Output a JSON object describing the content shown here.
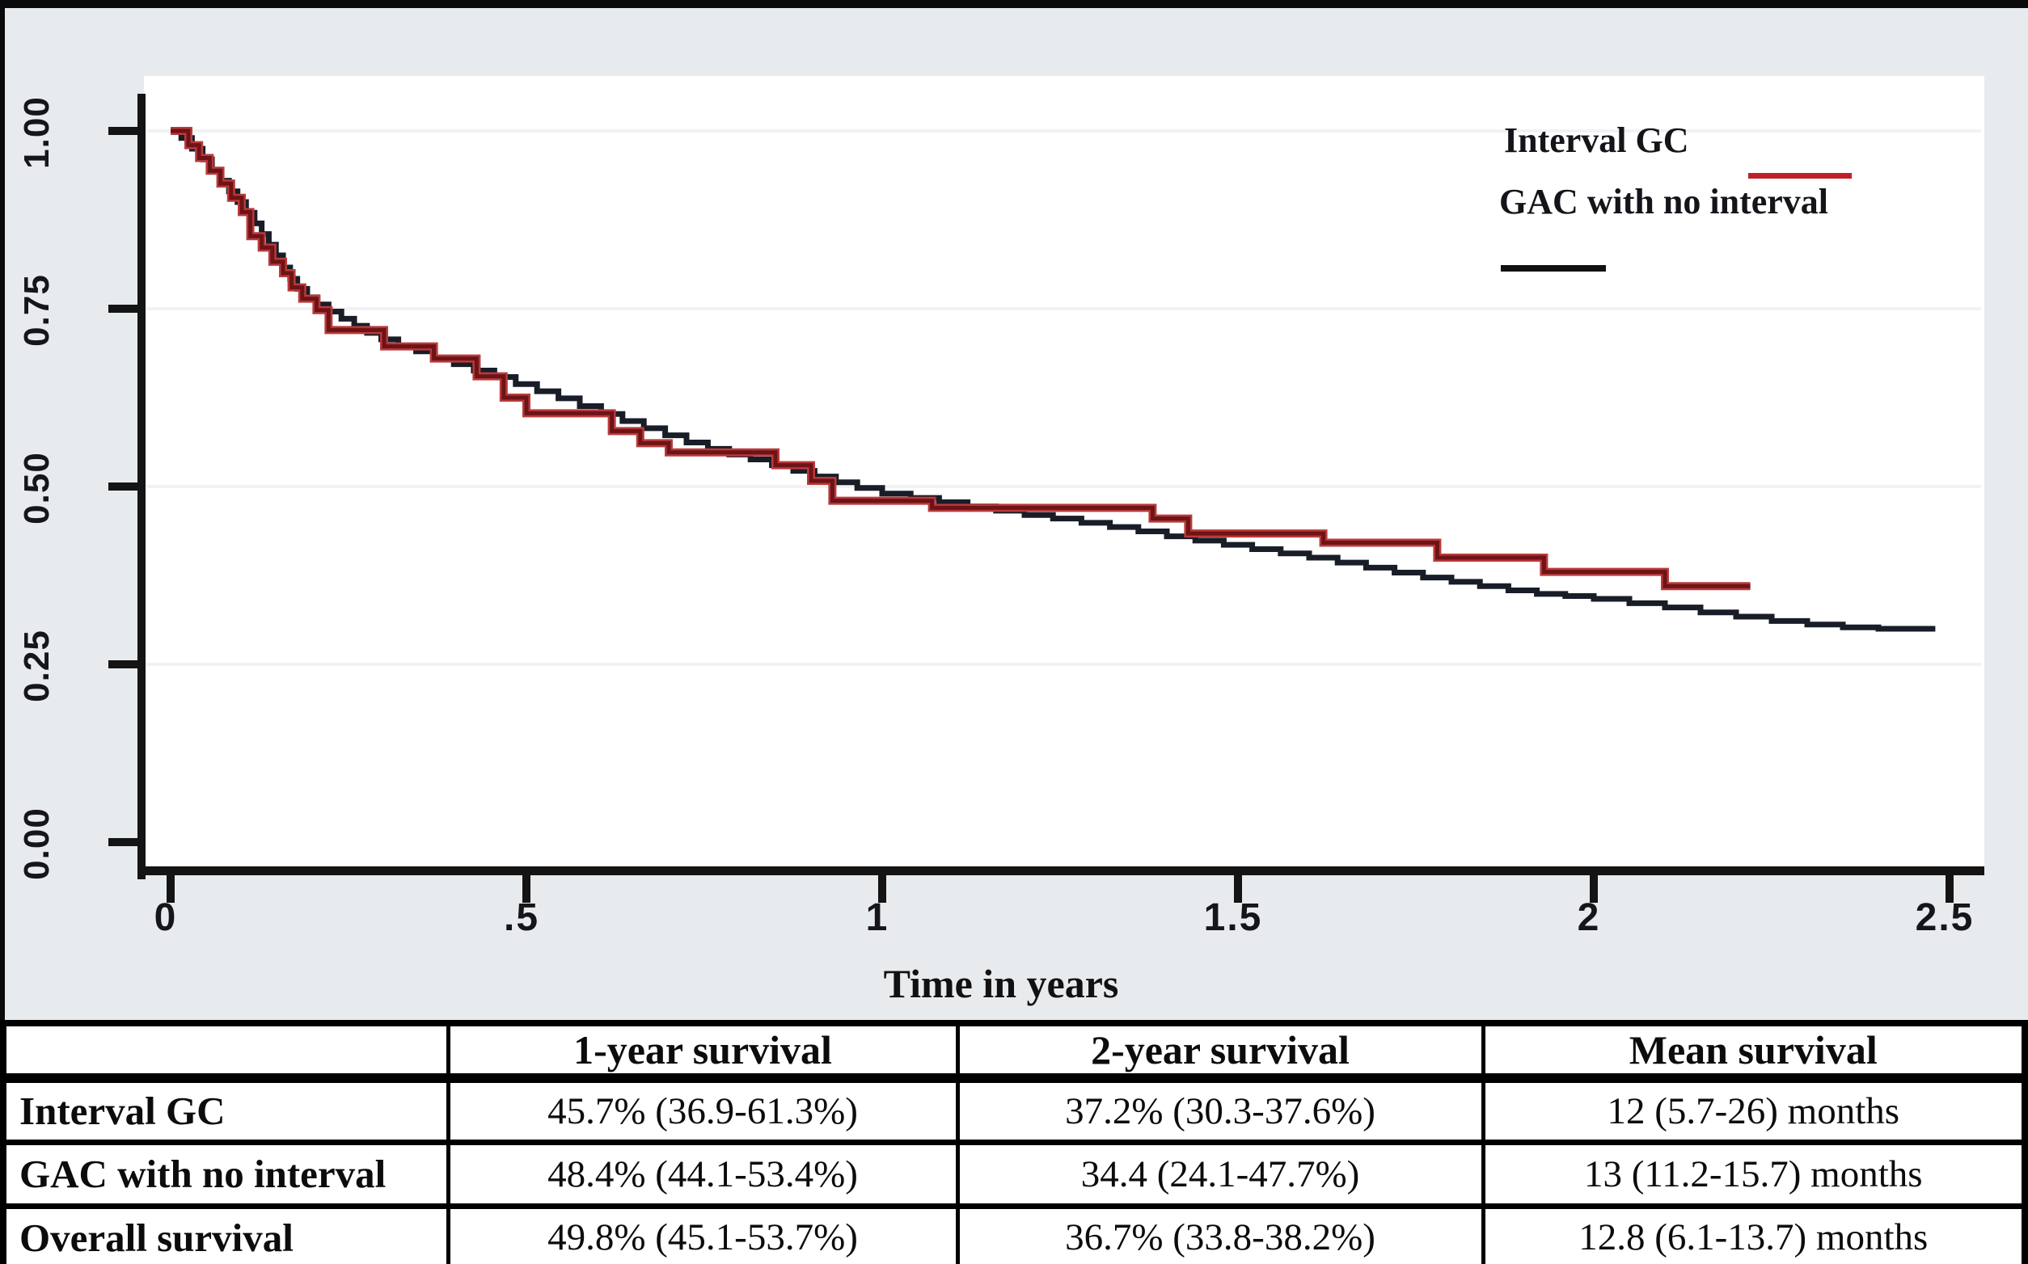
{
  "figure": {
    "background_color": "#e8ebee",
    "plot_background_color": "#ffffff",
    "axis_color": "#141414",
    "gridline_color": "#f0f2f3"
  },
  "chart_data": {
    "type": "line",
    "subtype": "kaplan-meier-step",
    "title": "",
    "xlabel": "Time in years",
    "ylabel": "",
    "xlim": [
      0,
      2.5
    ],
    "ylim": [
      0.0,
      1.0
    ],
    "grid": "horizontal-faint",
    "legend_position": "top-right",
    "x_ticks": [
      "0",
      ".5",
      "1",
      "1.5",
      "2",
      "2.5"
    ],
    "x_tick_values": [
      0,
      0.5,
      1,
      1.5,
      2,
      2.5
    ],
    "y_ticks": [
      "0.00",
      "0.25",
      "0.50",
      "0.75",
      "1.00"
    ],
    "y_tick_values": [
      0,
      0.25,
      0.5,
      0.75,
      1
    ],
    "series": [
      {
        "name": "Interval GC",
        "color": "#6e1318",
        "halo_color": "#b93a3a",
        "points": [
          [
            0.0,
            1.0
          ],
          [
            0.025,
            0.98
          ],
          [
            0.04,
            0.962
          ],
          [
            0.055,
            0.944
          ],
          [
            0.07,
            0.926
          ],
          [
            0.085,
            0.906
          ],
          [
            0.1,
            0.886
          ],
          [
            0.112,
            0.852
          ],
          [
            0.128,
            0.836
          ],
          [
            0.143,
            0.816
          ],
          [
            0.158,
            0.8
          ],
          [
            0.17,
            0.78
          ],
          [
            0.185,
            0.764
          ],
          [
            0.205,
            0.748
          ],
          [
            0.222,
            0.72
          ],
          [
            0.3,
            0.697
          ],
          [
            0.37,
            0.68
          ],
          [
            0.43,
            0.655
          ],
          [
            0.468,
            0.625
          ],
          [
            0.5,
            0.603
          ],
          [
            0.62,
            0.578
          ],
          [
            0.66,
            0.561
          ],
          [
            0.7,
            0.548
          ],
          [
            0.85,
            0.53
          ],
          [
            0.9,
            0.508
          ],
          [
            0.93,
            0.48
          ],
          [
            1.07,
            0.47
          ],
          [
            1.38,
            0.455
          ],
          [
            1.43,
            0.434
          ],
          [
            1.62,
            0.421
          ],
          [
            1.78,
            0.4
          ],
          [
            1.93,
            0.38
          ],
          [
            2.1,
            0.36
          ],
          [
            2.22,
            0.36
          ]
        ]
      },
      {
        "name": "GAC with no interval",
        "color": "#181d28",
        "halo_color": "#181d28",
        "points": [
          [
            0.0,
            1.0
          ],
          [
            0.015,
            0.99
          ],
          [
            0.03,
            0.975
          ],
          [
            0.045,
            0.96
          ],
          [
            0.058,
            0.945
          ],
          [
            0.07,
            0.93
          ],
          [
            0.082,
            0.915
          ],
          [
            0.094,
            0.9
          ],
          [
            0.106,
            0.885
          ],
          [
            0.118,
            0.87
          ],
          [
            0.128,
            0.855
          ],
          [
            0.138,
            0.84
          ],
          [
            0.148,
            0.825
          ],
          [
            0.158,
            0.808
          ],
          [
            0.168,
            0.792
          ],
          [
            0.178,
            0.778
          ],
          [
            0.192,
            0.766
          ],
          [
            0.206,
            0.756
          ],
          [
            0.222,
            0.746
          ],
          [
            0.24,
            0.736
          ],
          [
            0.258,
            0.726
          ],
          [
            0.276,
            0.716
          ],
          [
            0.296,
            0.707
          ],
          [
            0.32,
            0.698
          ],
          [
            0.345,
            0.69
          ],
          [
            0.37,
            0.681
          ],
          [
            0.398,
            0.672
          ],
          [
            0.426,
            0.663
          ],
          [
            0.455,
            0.654
          ],
          [
            0.485,
            0.644
          ],
          [
            0.515,
            0.634
          ],
          [
            0.545,
            0.624
          ],
          [
            0.575,
            0.613
          ],
          [
            0.605,
            0.602
          ],
          [
            0.635,
            0.592
          ],
          [
            0.665,
            0.582
          ],
          [
            0.695,
            0.572
          ],
          [
            0.725,
            0.562
          ],
          [
            0.755,
            0.553
          ],
          [
            0.785,
            0.545
          ],
          [
            0.815,
            0.538
          ],
          [
            0.845,
            0.53
          ],
          [
            0.875,
            0.522
          ],
          [
            0.905,
            0.514
          ],
          [
            0.935,
            0.506
          ],
          [
            0.965,
            0.498
          ],
          [
            1.0,
            0.49
          ],
          [
            1.04,
            0.484
          ],
          [
            1.08,
            0.478
          ],
          [
            1.12,
            0.472
          ],
          [
            1.16,
            0.466
          ],
          [
            1.2,
            0.46
          ],
          [
            1.24,
            0.455
          ],
          [
            1.28,
            0.449
          ],
          [
            1.32,
            0.443
          ],
          [
            1.36,
            0.437
          ],
          [
            1.4,
            0.43
          ],
          [
            1.44,
            0.424
          ],
          [
            1.48,
            0.418
          ],
          [
            1.52,
            0.412
          ],
          [
            1.56,
            0.406
          ],
          [
            1.6,
            0.4
          ],
          [
            1.64,
            0.393
          ],
          [
            1.68,
            0.386
          ],
          [
            1.72,
            0.379
          ],
          [
            1.76,
            0.372
          ],
          [
            1.8,
            0.366
          ],
          [
            1.84,
            0.36
          ],
          [
            1.88,
            0.354
          ],
          [
            1.92,
            0.349
          ],
          [
            1.96,
            0.346
          ],
          [
            2.0,
            0.342
          ],
          [
            2.05,
            0.336
          ],
          [
            2.1,
            0.33
          ],
          [
            2.15,
            0.323
          ],
          [
            2.2,
            0.317
          ],
          [
            2.25,
            0.311
          ],
          [
            2.3,
            0.306
          ],
          [
            2.35,
            0.302
          ],
          [
            2.4,
            0.3
          ],
          [
            2.48,
            0.3
          ]
        ]
      }
    ]
  },
  "legend": {
    "items": [
      {
        "label": "Interval GC",
        "swatch_color": "#c0202a"
      },
      {
        "label": "GAC with no interval",
        "swatch_color": "#111111"
      }
    ]
  },
  "table": {
    "columns": [
      "",
      "1-year survival",
      "2-year survival",
      "Mean survival"
    ],
    "rows": [
      {
        "label": "Interval GC",
        "values": [
          "45.7% (36.9-61.3%)",
          "37.2% (30.3-37.6%)",
          "12 (5.7-26) months"
        ]
      },
      {
        "label": "GAC with no interval",
        "values": [
          "48.4% (44.1-53.4%)",
          "34.4 (24.1-47.7%)",
          "13 (11.2-15.7) months"
        ]
      },
      {
        "label": "Overall survival",
        "values": [
          "49.8% (45.1-53.7%)",
          "36.7% (33.8-38.2%)",
          "12.8 (6.1-13.7) months"
        ]
      }
    ]
  }
}
